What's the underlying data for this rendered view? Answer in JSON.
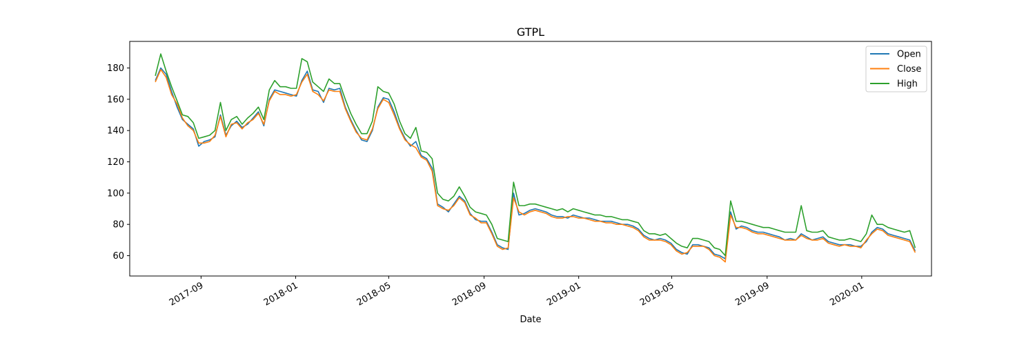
{
  "chart_data": {
    "type": "line",
    "title": "GTPL",
    "xlabel": "Date",
    "ylabel": "",
    "ylim": [
      47,
      197
    ],
    "xlim": [
      "2017-06-01",
      "2020-03-31"
    ],
    "yticks": [
      60,
      80,
      100,
      120,
      140,
      160,
      180
    ],
    "xticks": [
      "2017-09",
      "2018-01",
      "2018-05",
      "2018-09",
      "2019-01",
      "2019-05",
      "2019-09",
      "2020-01"
    ],
    "legend_position": "top-right",
    "grid": false,
    "x": [
      "2017-07-04",
      "2017-07-11",
      "2017-07-18",
      "2017-07-25",
      "2017-08-01",
      "2017-08-08",
      "2017-08-15",
      "2017-08-22",
      "2017-08-29",
      "2017-09-05",
      "2017-09-12",
      "2017-09-19",
      "2017-09-26",
      "2017-10-03",
      "2017-10-10",
      "2017-10-17",
      "2017-10-24",
      "2017-10-31",
      "2017-11-07",
      "2017-11-14",
      "2017-11-21",
      "2017-11-28",
      "2017-12-05",
      "2017-12-12",
      "2017-12-19",
      "2017-12-26",
      "2018-01-02",
      "2018-01-09",
      "2018-01-16",
      "2018-01-23",
      "2018-01-30",
      "2018-02-06",
      "2018-02-13",
      "2018-02-20",
      "2018-02-27",
      "2018-03-06",
      "2018-03-13",
      "2018-03-20",
      "2018-03-27",
      "2018-04-03",
      "2018-04-10",
      "2018-04-17",
      "2018-04-24",
      "2018-05-01",
      "2018-05-08",
      "2018-05-15",
      "2018-05-22",
      "2018-05-29",
      "2018-06-05",
      "2018-06-12",
      "2018-06-19",
      "2018-06-26",
      "2018-07-03",
      "2018-07-10",
      "2018-07-17",
      "2018-07-24",
      "2018-07-31",
      "2018-08-07",
      "2018-08-14",
      "2018-08-21",
      "2018-08-28",
      "2018-09-04",
      "2018-09-11",
      "2018-09-18",
      "2018-09-25",
      "2018-10-02",
      "2018-10-09",
      "2018-10-16",
      "2018-10-23",
      "2018-10-30",
      "2018-11-06",
      "2018-11-13",
      "2018-11-20",
      "2018-11-27",
      "2018-12-04",
      "2018-12-11",
      "2018-12-18",
      "2018-12-25",
      "2019-01-01",
      "2019-01-08",
      "2019-01-15",
      "2019-01-22",
      "2019-01-29",
      "2019-02-05",
      "2019-02-12",
      "2019-02-19",
      "2019-02-26",
      "2019-03-05",
      "2019-03-12",
      "2019-03-19",
      "2019-03-26",
      "2019-04-02",
      "2019-04-09",
      "2019-04-16",
      "2019-04-23",
      "2019-04-30",
      "2019-05-07",
      "2019-05-14",
      "2019-05-21",
      "2019-05-28",
      "2019-06-04",
      "2019-06-11",
      "2019-06-18",
      "2019-06-25",
      "2019-07-02",
      "2019-07-09",
      "2019-07-16",
      "2019-07-23",
      "2019-07-30",
      "2019-08-06",
      "2019-08-13",
      "2019-08-20",
      "2019-08-27",
      "2019-09-03",
      "2019-09-10",
      "2019-09-17",
      "2019-09-24",
      "2019-10-01",
      "2019-10-08",
      "2019-10-15",
      "2019-10-22",
      "2019-10-29",
      "2019-11-05",
      "2019-11-12",
      "2019-11-19",
      "2019-11-26",
      "2019-12-03",
      "2019-12-10",
      "2019-12-17",
      "2019-12-24",
      "2019-12-31",
      "2020-01-07",
      "2020-01-14",
      "2020-01-21",
      "2020-01-28",
      "2020-02-04",
      "2020-02-11",
      "2020-02-18",
      "2020-02-25",
      "2020-03-03",
      "2020-03-10"
    ],
    "series": [
      {
        "name": "Open",
        "color": "#1f77b4",
        "values": [
          172,
          180,
          176,
          165,
          155,
          147,
          144,
          141,
          130,
          133,
          134,
          136,
          150,
          137,
          143,
          146,
          142,
          144,
          148,
          152,
          143,
          160,
          166,
          165,
          164,
          163,
          162,
          172,
          178,
          166,
          165,
          158,
          167,
          166,
          167,
          155,
          147,
          140,
          134,
          133,
          140,
          155,
          161,
          160,
          152,
          142,
          135,
          130,
          133,
          124,
          122,
          116,
          93,
          91,
          88,
          93,
          98,
          95,
          87,
          83,
          82,
          82,
          75,
          67,
          65,
          64,
          100,
          86,
          87,
          89,
          90,
          89,
          88,
          86,
          85,
          85,
          84,
          86,
          85,
          84,
          84,
          83,
          82,
          82,
          82,
          81,
          80,
          80,
          79,
          77,
          73,
          71,
          70,
          71,
          70,
          68,
          64,
          62,
          61,
          67,
          67,
          66,
          65,
          61,
          60,
          58,
          88,
          77,
          79,
          78,
          76,
          75,
          75,
          74,
          73,
          72,
          70,
          71,
          70,
          74,
          72,
          70,
          71,
          72,
          69,
          68,
          67,
          67,
          67,
          66,
          66,
          69,
          75,
          78,
          77,
          74,
          73,
          72,
          71,
          70,
          63
        ]
      },
      {
        "name": "Close",
        "color": "#ff7f0e",
        "values": [
          171,
          179,
          174,
          163,
          157,
          148,
          143,
          140,
          132,
          132,
          133,
          137,
          149,
          136,
          144,
          145,
          141,
          145,
          147,
          151,
          144,
          159,
          165,
          163,
          163,
          162,
          163,
          171,
          176,
          165,
          163,
          159,
          166,
          165,
          165,
          154,
          146,
          139,
          135,
          134,
          141,
          154,
          160,
          158,
          150,
          141,
          134,
          131,
          129,
          123,
          121,
          114,
          92,
          90,
          89,
          92,
          97,
          94,
          86,
          84,
          81,
          81,
          74,
          66,
          64,
          65,
          97,
          88,
          86,
          88,
          89,
          88,
          87,
          85,
          84,
          84,
          85,
          85,
          84,
          84,
          83,
          82,
          82,
          81,
          81,
          80,
          80,
          79,
          78,
          76,
          72,
          70,
          70,
          70,
          69,
          67,
          63,
          61,
          62,
          66,
          66,
          66,
          64,
          60,
          59,
          56,
          86,
          78,
          78,
          77,
          75,
          74,
          74,
          73,
          72,
          71,
          70,
          70,
          70,
          73,
          71,
          70,
          70,
          71,
          68,
          67,
          66,
          67,
          66,
          66,
          65,
          70,
          74,
          77,
          76,
          73,
          72,
          71,
          70,
          69,
          62
        ]
      },
      {
        "name": "High",
        "color": "#2ca02c",
        "values": [
          175,
          189,
          178,
          168,
          159,
          150,
          149,
          145,
          135,
          136,
          137,
          140,
          158,
          140,
          147,
          149,
          144,
          148,
          151,
          155,
          147,
          166,
          172,
          168,
          168,
          167,
          167,
          186,
          184,
          171,
          168,
          165,
          173,
          170,
          170,
          160,
          151,
          144,
          138,
          138,
          146,
          168,
          165,
          164,
          157,
          146,
          138,
          135,
          142,
          127,
          126,
          122,
          100,
          96,
          95,
          98,
          104,
          98,
          91,
          88,
          87,
          86,
          80,
          71,
          70,
          69,
          107,
          92,
          92,
          93,
          93,
          92,
          91,
          90,
          89,
          90,
          88,
          90,
          89,
          88,
          87,
          86,
          86,
          85,
          85,
          84,
          83,
          83,
          82,
          81,
          76,
          74,
          74,
          73,
          74,
          71,
          68,
          66,
          65,
          71,
          71,
          70,
          69,
          65,
          64,
          60,
          95,
          82,
          82,
          81,
          80,
          79,
          78,
          78,
          77,
          76,
          75,
          75,
          75,
          92,
          76,
          75,
          75,
          76,
          72,
          71,
          70,
          70,
          71,
          70,
          69,
          74,
          86,
          80,
          80,
          78,
          77,
          76,
          75,
          76,
          65
        ]
      }
    ]
  }
}
